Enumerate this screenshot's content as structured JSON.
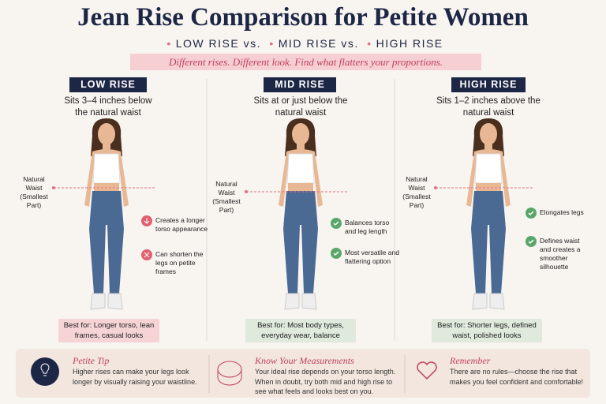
{
  "header": {
    "title": "Jean Rise Comparison for Petite Women",
    "subtitle": [
      "LOW RISE vs.",
      "MID RISE vs.",
      "HIGH RISE"
    ],
    "tagline": "Different rises. Different look. Find what flatters your proportions."
  },
  "columns": [
    {
      "label": "LOW RISE",
      "description": "Sits 3–4 inches below the natural waist",
      "waist_label": "Natural Waist (Smallest Part)",
      "notes": [
        "Creates a longer torso appearance",
        "Can shorten the legs on petite frames"
      ],
      "best_for": "Best for: Longer torso, lean frames, casual looks"
    },
    {
      "label": "MID RISE",
      "description": "Sits at or just below the natural waist",
      "waist_label": "Natural Waist (Smallest Part)",
      "notes": [
        "Balances torso and leg length",
        "Most versatile and flattering option"
      ],
      "best_for": "Best for: Most body types, everyday wear, balance"
    },
    {
      "label": "HIGH RISE",
      "description": "Sits 1–2 inches above the natural waist",
      "waist_label": "Natural Waist (Smallest Part)",
      "notes": [
        "Elongates legs",
        "Defines waist and creates a smoother silhouette"
      ],
      "best_for": "Best for: Shorter legs, defined waist, polished looks"
    }
  ],
  "tips": [
    {
      "title": "Petite Tip",
      "text": "Higher rises can make your legs look longer by visually raising your waistline."
    },
    {
      "title": "Know Your Measurements",
      "text": "Your ideal rise depends on your torso length. When in doubt, try both mid and high rise to see what feels and looks best on you."
    },
    {
      "title": "Remember",
      "text": "There are no rules—choose the rise that makes you feel confident and comfortable!"
    }
  ]
}
